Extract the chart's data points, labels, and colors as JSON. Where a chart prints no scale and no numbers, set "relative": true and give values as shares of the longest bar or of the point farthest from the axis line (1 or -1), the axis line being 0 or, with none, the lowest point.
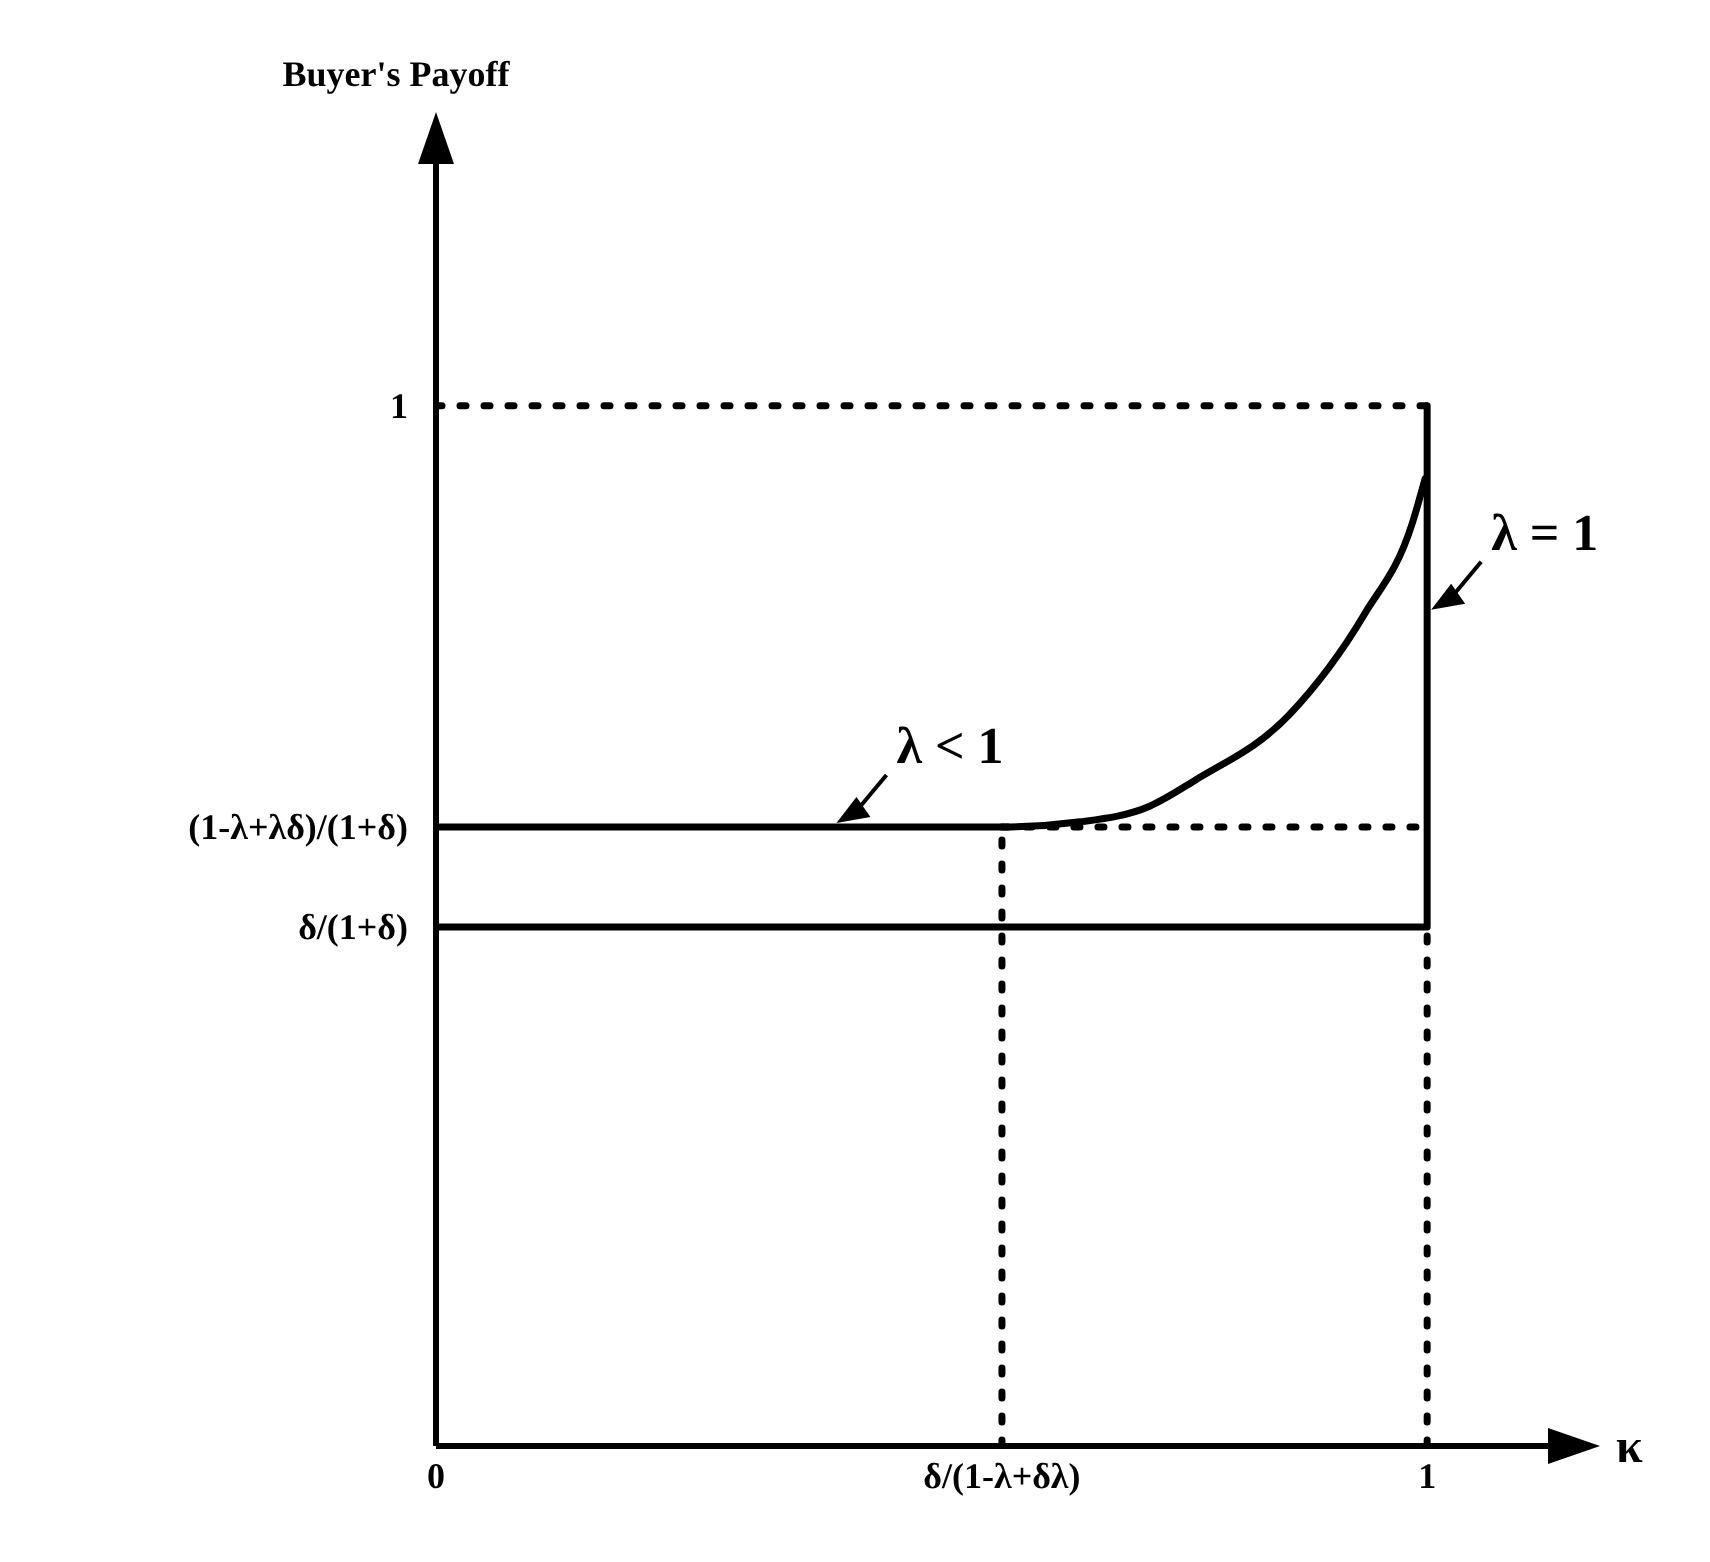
{
  "chart_data": {
    "type": "line",
    "xlabel": "κ",
    "relative": true,
    "xlim": [
      0,
      1.13
    ],
    "xticks": [
      0,
      {
        "value": 0.571,
        "label": "δ/(1-λ+δλ)"
      },
      1
    ],
    "grid": false,
    "marker": "none",
    "series": [
      {
        "color": "#000000",
        "line_style": "solid",
        "x": [
          0,
          0.571,
          0.65,
          0.72,
          0.766,
          0.861,
          0.937,
          0.985,
          0.998
        ],
        "values": [
          0.595,
          0.595,
          0.6,
          0.615,
          0.64,
          0.703,
          0.8,
          0.887,
          0.93
        ]
      },
      {
        "color": "#000000",
        "line_style": "solid",
        "x": [
          0,
          1,
          1
        ],
        "values": [
          0.499,
          0.499,
          1
        ]
      },
      {
        "color": "#000000",
        "line_style": "dotted",
        "x": [
          0,
          1
        ],
        "values": [
          1,
          1
        ]
      },
      {
        "color": "#000000",
        "line_style": "dotted",
        "x": [
          0.571,
          1
        ],
        "values": [
          0.595,
          0.595
        ]
      },
      {
        "color": "#000000",
        "line_style": "dotted",
        "x": [
          0.571,
          0.571
        ],
        "values": [
          0,
          0.595
        ]
      },
      {
        "color": "#000000",
        "line_style": "dotted",
        "x": [
          1,
          1
        ],
        "values": [
          0,
          0.499
        ]
      }
    ],
    "annotations": [
      "Buyer's Payoff",
      {
        "text": "1",
        "x": 0,
        "y": 1
      },
      {
        "text": "(1-λ+λδ)/(1+δ)",
        "x": 0,
        "y": 0.595
      },
      {
        "text": "δ/(1+δ)",
        "x": 0,
        "y": 0.499
      },
      {
        "text": "λ < 1",
        "x": 0.4,
        "y": 0.595
      },
      {
        "text": "λ = 1",
        "x": 1,
        "y": 0.8
      }
    ]
  }
}
